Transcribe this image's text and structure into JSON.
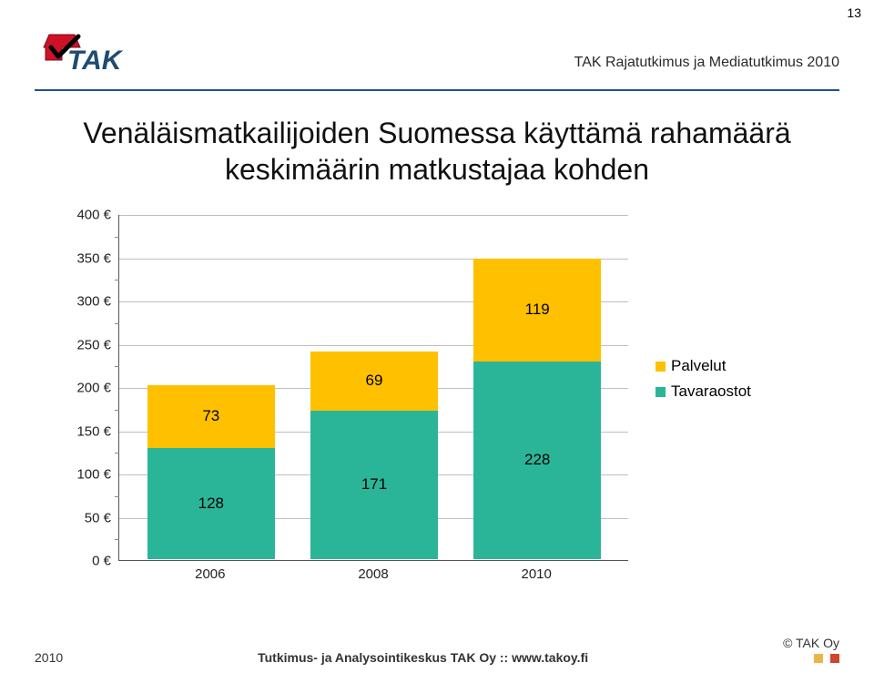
{
  "page_number": "13",
  "header_sub": "TAK Rajatutkimus ja Mediatutkimus 2010",
  "logo_text": "TAK",
  "title_line1": "Venäläismatkailijoiden Suomessa käyttämä rahamäärä",
  "title_line2": "keskimäärin matkustajaa kohden",
  "footer": {
    "year": "2010",
    "center": "Tutkimus- ja Analysointikeskus TAK Oy   ::   www.takoy.fi",
    "copyright": "© TAK Oy"
  },
  "colors": {
    "palvelut": "#ffc000",
    "tavaraostot": "#2bb598",
    "footer_sq1": "#e9b64c",
    "footer_sq2": "#cf452d",
    "logo_check_bg": "#ce1126",
    "logo_text": "#1e4c73",
    "axis": "#555555",
    "grid": "#bfbfbf"
  },
  "chart": {
    "type": "stacked-bar",
    "y_max": 400,
    "y_step": 50,
    "y_labels": [
      "0 €",
      "50 €",
      "100 €",
      "150 €",
      "200 €",
      "250 €",
      "300 €",
      "350 €",
      "400 €"
    ],
    "x_labels": [
      "2006",
      "2008",
      "2010"
    ],
    "series": [
      "Tavaraostot",
      "Palvelut"
    ],
    "legend": [
      {
        "label": "Palvelut",
        "color_key": "palvelut"
      },
      {
        "label": "Tavaraostot",
        "color_key": "tavaraostot"
      }
    ],
    "bars": [
      {
        "x": "2006",
        "tavaraostot": 128,
        "palvelut": 73
      },
      {
        "x": "2008",
        "tavaraostot": 171,
        "palvelut": 69
      },
      {
        "x": "2010",
        "tavaraostot": 228,
        "palvelut": 119
      }
    ]
  }
}
